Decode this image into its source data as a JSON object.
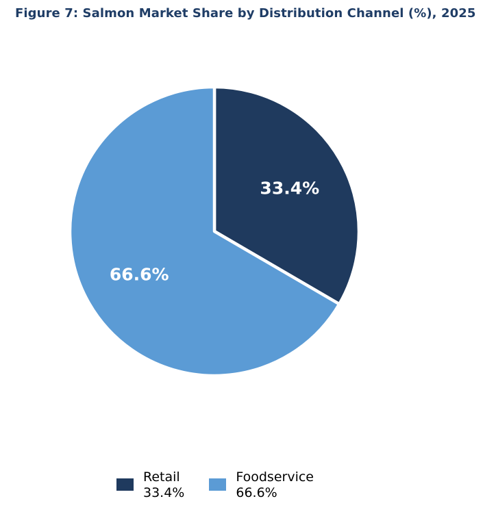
{
  "colors": {
    "title_text": "#1f3d66",
    "slice_label_text": "#ffffff",
    "legend_text": "#000000",
    "wedge_border": "#ffffff",
    "background": "#ffffff"
  },
  "chart_data": {
    "type": "pie",
    "title": "Figure 7: Salmon Market Share by Distribution Channel (%), 2025",
    "categories": [
      "Retail",
      "Foodservice"
    ],
    "values": [
      33.4,
      66.6
    ],
    "slice_labels": [
      "33.4%",
      "66.6%"
    ],
    "slice_colors": [
      "#1f3a5e",
      "#5b9bd5"
    ],
    "start": "top",
    "direction": "clockwise",
    "label_radius_fraction": 0.6,
    "legend": {
      "position": "bottom-center",
      "entries": [
        {
          "label": "Retail",
          "value_label": "33.4%"
        },
        {
          "label": "Foodservice",
          "value_label": "66.6%"
        }
      ]
    }
  }
}
